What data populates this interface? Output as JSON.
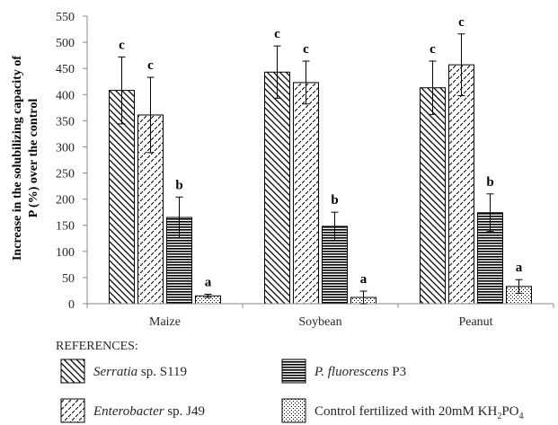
{
  "chart_data": {
    "type": "bar",
    "categories": [
      "Maize",
      "Soybean",
      "Peanut"
    ],
    "ylabel": [
      "Increase in the solubilizing capacity of",
      "P (%) over the control"
    ],
    "ylim": [
      0,
      550
    ],
    "yticks": [
      0,
      50,
      100,
      150,
      200,
      250,
      300,
      350,
      400,
      450,
      500,
      550
    ],
    "grid": false,
    "error_bars": true,
    "legend": {
      "title": "REFERENCES:",
      "position": "bottom"
    },
    "series": [
      {
        "name": "Serratia sp. S119",
        "name_parts": [
          {
            "text": "Serratia",
            "style": "italic"
          },
          {
            "text": " sp. S119",
            "style": "normal"
          }
        ],
        "pattern": "backslash-hatch",
        "values": [
          408,
          443,
          413
        ],
        "errors": [
          64,
          50,
          51
        ],
        "letters": [
          "c",
          "c",
          "c"
        ]
      },
      {
        "name": "Enterobacter sp. J49",
        "name_parts": [
          {
            "text": "Enterobacter",
            "style": "italic"
          },
          {
            "text": " sp. J49",
            "style": "normal"
          }
        ],
        "pattern": "slash-hatch",
        "values": [
          361,
          423,
          457
        ],
        "errors": [
          72,
          41,
          59
        ],
        "letters": [
          "c",
          "c",
          "c"
        ]
      },
      {
        "name": "P. fluorescens P3",
        "name_parts": [
          {
            "text": "P. fluorescens",
            "style": "italic"
          },
          {
            "text": " P3",
            "style": "normal"
          }
        ],
        "pattern": "horizontal-lines",
        "values": [
          165,
          148,
          174
        ],
        "errors": [
          39,
          27,
          36
        ],
        "letters": [
          "b",
          "b",
          "b"
        ]
      },
      {
        "name": "Control fertilized with 20mM KH2PO4",
        "name_parts": [
          {
            "text": "Control fertilized with 20mM KH",
            "style": "normal"
          },
          {
            "text": "2",
            "style": "sub"
          },
          {
            "text": "PO",
            "style": "normal"
          },
          {
            "text": "4",
            "style": "sub"
          }
        ],
        "pattern": "dots",
        "values": [
          15,
          12,
          33
        ],
        "errors": [
          3,
          12,
          13
        ],
        "letters": [
          "a",
          "a",
          "a"
        ]
      }
    ]
  }
}
